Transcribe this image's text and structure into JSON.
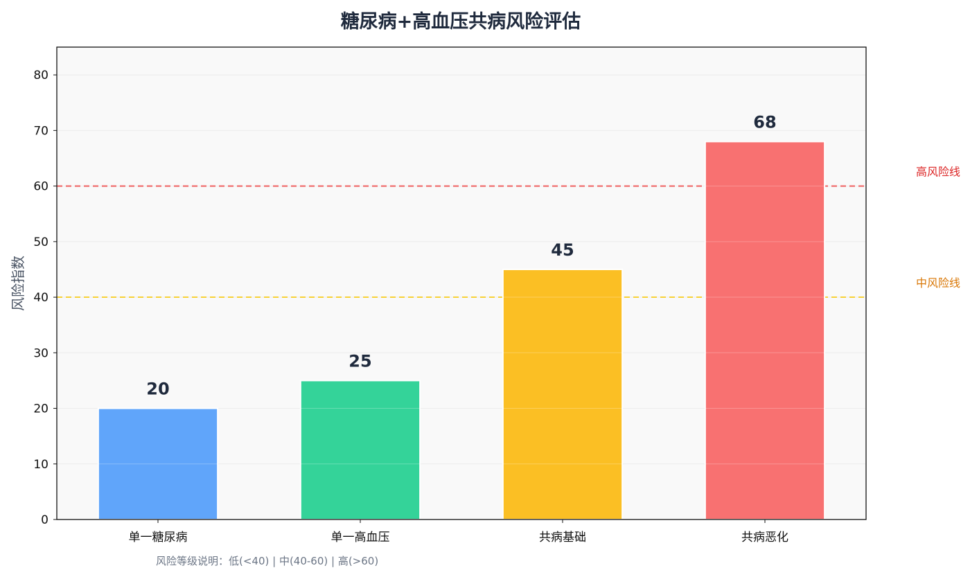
{
  "chart_data": {
    "type": "bar",
    "title": "糖尿病+高血压共病风险评估",
    "xlabel": "",
    "ylabel": "风险指数",
    "categories": [
      "单一糖尿病",
      "单一高血压",
      "共病基础",
      "共病恶化"
    ],
    "values": [
      20,
      25,
      45,
      68
    ],
    "bar_colors": [
      "#60a5fa",
      "#34d399",
      "#fbbf24",
      "#f87171"
    ],
    "ylim": [
      0,
      85
    ],
    "yticks": [
      0,
      10,
      20,
      30,
      40,
      50,
      60,
      70,
      80
    ],
    "grid": true,
    "reference_lines": [
      {
        "label": "高风险线",
        "value": 60,
        "color": "#ef4444",
        "text_color": "#dc2626"
      },
      {
        "label": "中风险线",
        "value": 40,
        "color": "#facc15",
        "text_color": "#d97706"
      }
    ],
    "note": "风险等级说明：低(<40) | 中(40-60) | 高(>60)"
  }
}
